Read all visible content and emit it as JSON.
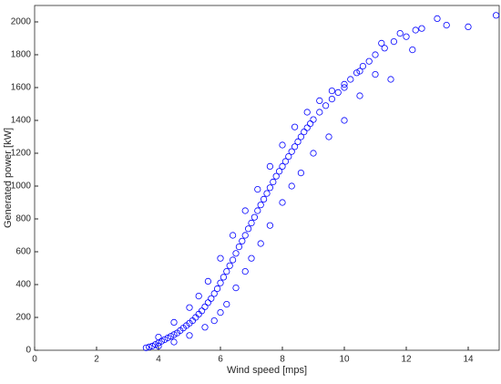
{
  "chart_data": {
    "type": "scatter",
    "x_label": "Wind speed [mps]",
    "y_label": "Generated power [kW]",
    "xlim": [
      0,
      15
    ],
    "xticks": [
      0,
      2,
      4,
      6,
      8,
      10,
      12,
      14
    ],
    "ylim": [
      0,
      2100
    ],
    "yticks": [
      0,
      200,
      400,
      600,
      800,
      1000,
      1200,
      1400,
      1600,
      1800,
      2000
    ],
    "series": [
      {
        "color": "#0000ff",
        "x": [
          3.6,
          3.7,
          3.8,
          3.9,
          4.0,
          4.1,
          4.2,
          4.3,
          4.4,
          4.5,
          4.6,
          4.7,
          4.8,
          4.9,
          5.0,
          5.1,
          5.2,
          5.3,
          5.4,
          5.5,
          5.6,
          5.7,
          5.8,
          5.9,
          6.0,
          6.1,
          6.2,
          6.3,
          6.4,
          6.5,
          6.6,
          6.7,
          6.8,
          6.9,
          7.0,
          7.1,
          7.2,
          7.3,
          7.4,
          7.5,
          7.6,
          7.7,
          7.8,
          7.9,
          8.0,
          8.1,
          8.2,
          8.3,
          8.4,
          8.5,
          8.6,
          8.7,
          8.8,
          8.9,
          9.0,
          9.2,
          9.4,
          9.6,
          9.8,
          10.0,
          10.2,
          10.4,
          10.6,
          10.8,
          11.0,
          11.3,
          11.6,
          12.0,
          12.3,
          12.5,
          13.0,
          13.3,
          14.0,
          14.9,
          4.0,
          4.5,
          5.0,
          5.5,
          5.8,
          6.0,
          6.2,
          6.5,
          6.8,
          7.0,
          7.3,
          7.6,
          8.0,
          8.3,
          8.6,
          9.0,
          9.5,
          10.0,
          10.5,
          11.0,
          11.5,
          12.2,
          4.0,
          4.5,
          5.0,
          5.3,
          5.6,
          6.0,
          6.4,
          6.8,
          7.2,
          7.6,
          8.0,
          8.4,
          8.8,
          9.2,
          9.6,
          10.0,
          10.5,
          11.2,
          11.8
        ],
        "values": [
          15,
          20,
          25,
          35,
          45,
          55,
          65,
          75,
          85,
          95,
          105,
          120,
          135,
          150,
          165,
          180,
          200,
          220,
          240,
          265,
          290,
          315,
          345,
          375,
          410,
          445,
          480,
          515,
          550,
          590,
          630,
          665,
          700,
          740,
          775,
          810,
          850,
          885,
          920,
          955,
          990,
          1025,
          1060,
          1090,
          1120,
          1150,
          1180,
          1210,
          1240,
          1270,
          1300,
          1330,
          1355,
          1380,
          1405,
          1450,
          1490,
          1530,
          1570,
          1600,
          1650,
          1690,
          1730,
          1760,
          1800,
          1840,
          1880,
          1910,
          1950,
          1960,
          2020,
          1980,
          1970,
          2040,
          25,
          50,
          90,
          140,
          180,
          230,
          280,
          380,
          480,
          560,
          650,
          760,
          900,
          1000,
          1080,
          1200,
          1300,
          1400,
          1550,
          1680,
          1650,
          1830,
          80,
          170,
          260,
          330,
          420,
          560,
          700,
          850,
          980,
          1120,
          1250,
          1360,
          1450,
          1520,
          1580,
          1620,
          1700,
          1870,
          1930
        ]
      }
    ]
  }
}
